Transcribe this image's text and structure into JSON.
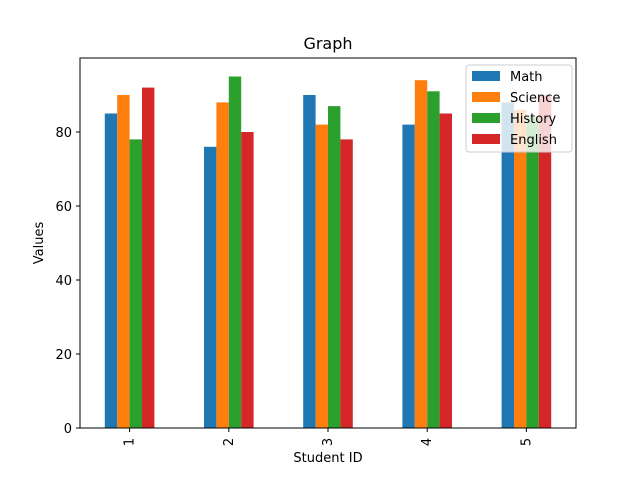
{
  "chart_data": {
    "type": "bar",
    "title": "Graph",
    "xlabel": "Student ID",
    "ylabel": "Values",
    "categories": [
      "1",
      "2",
      "3",
      "4",
      "5"
    ],
    "ylim": [
      0,
      100
    ],
    "yticks": [
      0,
      20,
      40,
      60,
      80
    ],
    "grid": false,
    "legend_position": "top-right",
    "series": [
      {
        "name": "Math",
        "color": "#1f77b4",
        "values": [
          85,
          76,
          90,
          82,
          88
        ]
      },
      {
        "name": "Science",
        "color": "#ff7f0e",
        "values": [
          90,
          88,
          82,
          94,
          86
        ]
      },
      {
        "name": "History",
        "color": "#2ca02c",
        "values": [
          78,
          95,
          87,
          91,
          84
        ]
      },
      {
        "name": "English",
        "color": "#d62728",
        "values": [
          92,
          80,
          78,
          85,
          90
        ]
      }
    ]
  }
}
